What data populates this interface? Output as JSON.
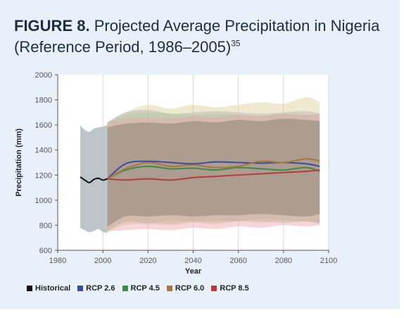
{
  "figure": {
    "label": "FIGURE 8.",
    "title": "Projected Average Precipitation in Nigeria (Reference Period, 1986–2005)",
    "ref": "35"
  },
  "chart_data": {
    "type": "line",
    "xlabel": "Year",
    "ylabel": "Precipitation (mm)",
    "xlim": [
      1980,
      2100
    ],
    "ylim": [
      600,
      2000
    ],
    "xticks": [
      1980,
      2000,
      2020,
      2040,
      2060,
      2080,
      2100
    ],
    "yticks": [
      600,
      800,
      1000,
      1200,
      1400,
      1600,
      1800,
      2000
    ],
    "legend_position": "bottom",
    "series": [
      {
        "name": "Historical",
        "color": "#111111",
        "band_color": "#b3bbbf",
        "x": [
          1990,
          1992,
          1994,
          1996,
          1998,
          2000,
          2002
        ],
        "values": [
          1185,
          1160,
          1140,
          1165,
          1175,
          1160,
          1170
        ],
        "upper": [
          1595,
          1560,
          1545,
          1570,
          1580,
          1585,
          1600
        ],
        "lower": [
          780,
          760,
          745,
          755,
          770,
          745,
          740
        ]
      },
      {
        "name": "RCP 2.6",
        "color": "#3b4ca0",
        "band_color": "#8d9ad6",
        "x": [
          2002,
          2010,
          2020,
          2030,
          2040,
          2050,
          2060,
          2070,
          2080,
          2090,
          2096
        ],
        "values": [
          1170,
          1290,
          1310,
          1300,
          1290,
          1305,
          1300,
          1295,
          1300,
          1290,
          1270
        ],
        "upper": [
          1620,
          1700,
          1720,
          1690,
          1700,
          1710,
          1700,
          1690,
          1700,
          1710,
          1690
        ],
        "lower": [
          750,
          830,
          810,
          840,
          830,
          840,
          830,
          850,
          840,
          830,
          820
        ]
      },
      {
        "name": "RCP 4.5",
        "color": "#3f8a4a",
        "band_color": "#8fc796",
        "x": [
          2002,
          2010,
          2020,
          2030,
          2040,
          2050,
          2060,
          2070,
          2080,
          2090,
          2096
        ],
        "values": [
          1170,
          1240,
          1270,
          1250,
          1255,
          1240,
          1260,
          1250,
          1240,
          1260,
          1230
        ],
        "upper": [
          1620,
          1680,
          1700,
          1690,
          1680,
          1690,
          1680,
          1670,
          1690,
          1680,
          1670
        ],
        "lower": [
          750,
          820,
          830,
          810,
          830,
          820,
          840,
          830,
          820,
          830,
          810
        ]
      },
      {
        "name": "RCP 6.0",
        "color": "#a8763a",
        "band_color": "#dccf95",
        "x": [
          2002,
          2010,
          2020,
          2030,
          2040,
          2050,
          2060,
          2070,
          2080,
          2090,
          2096
        ],
        "values": [
          1170,
          1250,
          1300,
          1270,
          1280,
          1260,
          1270,
          1310,
          1300,
          1330,
          1310
        ],
        "upper": [
          1620,
          1700,
          1760,
          1730,
          1760,
          1740,
          1760,
          1780,
          1770,
          1820,
          1780
        ],
        "lower": [
          750,
          800,
          810,
          800,
          820,
          810,
          830,
          820,
          840,
          830,
          850
        ]
      },
      {
        "name": "RCP 8.5",
        "color": "#b83c3c",
        "band_color": "#eaa3ae",
        "x": [
          2002,
          2010,
          2020,
          2030,
          2040,
          2050,
          2060,
          2070,
          2080,
          2090,
          2096
        ],
        "values": [
          1170,
          1160,
          1170,
          1160,
          1180,
          1190,
          1200,
          1210,
          1220,
          1230,
          1240
        ],
        "upper": [
          1620,
          1650,
          1660,
          1650,
          1670,
          1660,
          1680,
          1670,
          1690,
          1680,
          1690
        ],
        "lower": [
          750,
          760,
          770,
          760,
          780,
          770,
          790,
          780,
          800,
          790,
          800
        ]
      }
    ]
  }
}
